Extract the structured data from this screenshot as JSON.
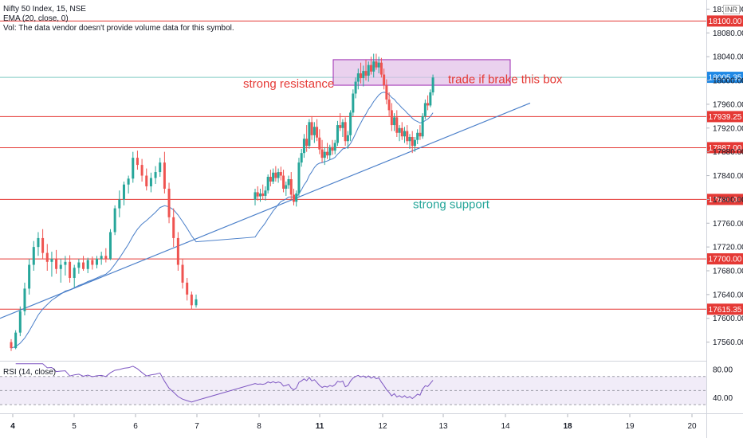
{
  "header": {
    "symbol_line": "Nifty 50 Index, 15, NSE",
    "ema_line": "EMA (20, close, 0)",
    "vol_line": "Vol: The data vendor doesn't provide volume data for this symbol.",
    "currency": "INR"
  },
  "rsi_label": "RSI (14, close)",
  "colors": {
    "up": "#26a69a",
    "down": "#ef5350",
    "level_line": "#e53935",
    "trendline": "#4a7fc9",
    "ema": "#4a7fc9",
    "rsi": "#7e57c2",
    "box_fill": "#e1bee7",
    "box_stroke": "#9c27b0",
    "price_tag": "#1e88e5"
  },
  "chart_data": {
    "type": "candlestick",
    "ylim": [
      17530,
      18130
    ],
    "y_ticks": [
      17560,
      17600,
      17640,
      17680,
      17720,
      17760,
      17800,
      17840,
      17880,
      17920,
      17960,
      18000,
      18040,
      18080,
      18120
    ],
    "x_ticks": [
      "4",
      "5",
      "6",
      "7",
      "8",
      "11",
      "12",
      "13",
      "14",
      "18",
      "19",
      "20"
    ],
    "levels": [
      {
        "value": 18100.0,
        "label": "18100.00"
      },
      {
        "value": 17939.25,
        "label": "17939.25"
      },
      {
        "value": 17887.0,
        "label": "17887.00"
      },
      {
        "value": 17800.0,
        "label": "17800.00"
      },
      {
        "value": 17700.0,
        "label": "17700.00"
      },
      {
        "value": 17615.35,
        "label": "17615.35"
      }
    ],
    "last_price": {
      "value": 18005.35,
      "label": "18005.35"
    },
    "box": {
      "top": 18035,
      "bottom": 17992
    },
    "trendline": {
      "from": 17600,
      "to": 17962
    },
    "annotations": [
      {
        "text": "strong resistance",
        "color": "#e53935",
        "price": 17995
      },
      {
        "text": "trade if brake this box",
        "color": "#e53935",
        "price": 18002
      },
      {
        "text": "strong support",
        "color": "#26a69a",
        "price": 17792
      }
    ],
    "candles": [
      [
        17560,
        17565,
        17545,
        17550
      ],
      [
        17550,
        17580,
        17548,
        17576
      ],
      [
        17576,
        17620,
        17570,
        17612
      ],
      [
        17612,
        17660,
        17605,
        17650
      ],
      [
        17650,
        17700,
        17640,
        17690
      ],
      [
        17690,
        17730,
        17680,
        17720
      ],
      [
        17720,
        17745,
        17705,
        17735
      ],
      [
        17735,
        17750,
        17700,
        17710
      ],
      [
        17710,
        17725,
        17680,
        17695
      ],
      [
        17695,
        17712,
        17670,
        17700
      ],
      [
        17700,
        17715,
        17675,
        17683
      ],
      [
        17683,
        17700,
        17660,
        17690
      ],
      [
        17690,
        17705,
        17672,
        17695
      ],
      [
        17695,
        17706,
        17660,
        17668
      ],
      [
        17668,
        17690,
        17652,
        17685
      ],
      [
        17685,
        17700,
        17675,
        17694
      ],
      [
        17694,
        17705,
        17680,
        17683
      ],
      [
        17683,
        17702,
        17676,
        17698
      ],
      [
        17698,
        17704,
        17682,
        17690
      ],
      [
        17690,
        17705,
        17684,
        17700
      ],
      [
        17700,
        17712,
        17690,
        17705
      ],
      [
        17705,
        17718,
        17694,
        17700
      ],
      [
        17700,
        17750,
        17698,
        17745
      ],
      [
        17745,
        17790,
        17740,
        17785
      ],
      [
        17785,
        17815,
        17770,
        17800
      ],
      [
        17800,
        17830,
        17790,
        17825
      ],
      [
        17825,
        17840,
        17810,
        17835
      ],
      [
        17835,
        17880,
        17828,
        17870
      ],
      [
        17870,
        17882,
        17850,
        17858
      ],
      [
        17858,
        17868,
        17830,
        17840
      ],
      [
        17840,
        17852,
        17815,
        17822
      ],
      [
        17822,
        17845,
        17812,
        17836
      ],
      [
        17836,
        17856,
        17826,
        17846
      ],
      [
        17846,
        17870,
        17838,
        17862
      ],
      [
        17862,
        17880,
        17810,
        17818
      ],
      [
        17818,
        17828,
        17760,
        17770
      ],
      [
        17770,
        17785,
        17720,
        17735
      ],
      [
        17735,
        17745,
        17680,
        17690
      ],
      [
        17690,
        17700,
        17650,
        17660
      ],
      [
        17660,
        17668,
        17630,
        17640
      ],
      [
        17640,
        17645,
        17615,
        17622
      ],
      [
        17622,
        17640,
        17618,
        17632
      ],
      [
        17800,
        17818,
        17790,
        17812
      ],
      [
        17812,
        17822,
        17798,
        17805
      ],
      [
        17805,
        17818,
        17796,
        17810
      ],
      [
        17810,
        17825,
        17800,
        17806
      ],
      [
        17806,
        17822,
        17798,
        17815
      ],
      [
        17815,
        17842,
        17810,
        17838
      ],
      [
        17838,
        17850,
        17822,
        17830
      ],
      [
        17830,
        17852,
        17826,
        17845
      ],
      [
        17845,
        17856,
        17830,
        17836
      ],
      [
        17836,
        17852,
        17828,
        17846
      ],
      [
        17846,
        17855,
        17832,
        17840
      ],
      [
        17840,
        17850,
        17812,
        17818
      ],
      [
        17818,
        17830,
        17806,
        17824
      ],
      [
        17824,
        17840,
        17818,
        17834
      ],
      [
        17834,
        17846,
        17800,
        17808
      ],
      [
        17808,
        17818,
        17790,
        17796
      ],
      [
        17796,
        17815,
        17788,
        17810
      ],
      [
        17810,
        17870,
        17805,
        17862
      ],
      [
        17862,
        17885,
        17855,
        17878
      ],
      [
        17878,
        17910,
        17870,
        17902
      ],
      [
        17902,
        17925,
        17880,
        17890
      ],
      [
        17890,
        17935,
        17885,
        17930
      ],
      [
        17930,
        17940,
        17900,
        17908
      ],
      [
        17908,
        17930,
        17895,
        17922
      ],
      [
        17922,
        17935,
        17898,
        17904
      ],
      [
        17904,
        17918,
        17876,
        17884
      ],
      [
        17884,
        17900,
        17862,
        17870
      ],
      [
        17870,
        17888,
        17858,
        17880
      ],
      [
        17880,
        17895,
        17868,
        17874
      ],
      [
        17874,
        17892,
        17866,
        17888
      ],
      [
        17888,
        17900,
        17875,
        17882
      ],
      [
        17882,
        17900,
        17876,
        17895
      ],
      [
        17895,
        17932,
        17890,
        17925
      ],
      [
        17925,
        17945,
        17915,
        17920
      ],
      [
        17920,
        17935,
        17905,
        17930
      ],
      [
        17930,
        17938,
        17890,
        17898
      ],
      [
        17898,
        17915,
        17885,
        17908
      ],
      [
        17908,
        17950,
        17898,
        17946
      ],
      [
        17946,
        17985,
        17940,
        17978
      ],
      [
        17978,
        18005,
        17970,
        17998
      ],
      [
        17998,
        18020,
        17985,
        18012
      ],
      [
        18012,
        18030,
        17995,
        18004
      ],
      [
        18004,
        18025,
        17990,
        18016
      ],
      [
        18016,
        18035,
        18000,
        18008
      ],
      [
        18008,
        18032,
        17998,
        18026
      ],
      [
        18026,
        18040,
        18010,
        18015
      ],
      [
        18015,
        18045,
        18005,
        18032
      ],
      [
        18032,
        18045,
        18018,
        18022
      ],
      [
        18022,
        18040,
        18012,
        18030
      ],
      [
        18030,
        18038,
        18005,
        18010
      ],
      [
        18010,
        18020,
        17985,
        17992
      ],
      [
        17992,
        18002,
        17960,
        17968
      ],
      [
        17968,
        17980,
        17940,
        17950
      ],
      [
        17950,
        17962,
        17915,
        17925
      ],
      [
        17925,
        17945,
        17915,
        17938
      ],
      [
        17938,
        17950,
        17905,
        17912
      ],
      [
        17912,
        17925,
        17898,
        17920
      ],
      [
        17920,
        17930,
        17900,
        17906
      ],
      [
        17906,
        17922,
        17895,
        17915
      ],
      [
        17915,
        17925,
        17892,
        17898
      ],
      [
        17898,
        17910,
        17885,
        17905
      ],
      [
        17905,
        17915,
        17878,
        17890
      ],
      [
        17890,
        17905,
        17880,
        17900
      ],
      [
        17900,
        17918,
        17893,
        17912
      ],
      [
        17912,
        17925,
        17900,
        17906
      ],
      [
        17906,
        17945,
        17902,
        17940
      ],
      [
        17940,
        17968,
        17935,
        17962
      ],
      [
        17962,
        17975,
        17950,
        17958
      ],
      [
        17958,
        17985,
        17955,
        17980
      ],
      [
        17980,
        18010,
        17975,
        18005
      ]
    ]
  }
}
